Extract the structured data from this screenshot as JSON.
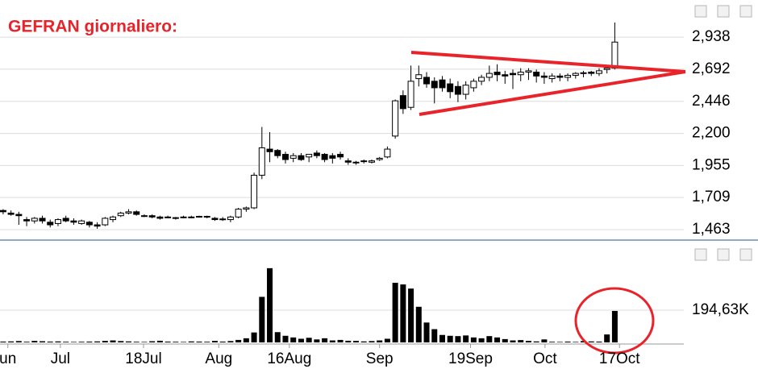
{
  "chart_data": {
    "type": "candlestick",
    "title": "GEFRAN giornaliero:",
    "xlim": [
      -0.4,
      86.8
    ],
    "xticks": [
      {
        "value": 0.6,
        "label": "un"
      },
      {
        "value": 7.3,
        "label": "Jul"
      },
      {
        "value": 17.9,
        "label": "18Jul"
      },
      {
        "value": 27.5,
        "label": "Aug"
      },
      {
        "value": 36.5,
        "label": "16Aug"
      },
      {
        "value": 48,
        "label": "Sep"
      },
      {
        "value": 59.6,
        "label": "19Sep"
      },
      {
        "value": 69.1,
        "label": "Oct"
      },
      {
        "value": 78.6,
        "label": "17Oct"
      }
    ],
    "ylim": [
      1.383,
      3.21
    ],
    "yticks": [
      {
        "value": 1.463,
        "label": "1,463"
      },
      {
        "value": 1.709,
        "label": "1,709"
      },
      {
        "value": 1.955,
        "label": "1,955"
      },
      {
        "value": 2.2,
        "label": "2,200"
      },
      {
        "value": 2.446,
        "label": "2,446"
      },
      {
        "value": 2.692,
        "label": "2,692"
      },
      {
        "value": 2.938,
        "label": "2,938"
      }
    ],
    "grid": true,
    "up_color": "#ffffff",
    "down_color": "#000000",
    "candles": [
      [
        1.61,
        1.62,
        1.58,
        1.6
      ],
      [
        1.59,
        1.61,
        1.57,
        1.58
      ],
      [
        1.58,
        1.6,
        1.5,
        1.57
      ],
      [
        1.54,
        1.56,
        1.49,
        1.53
      ],
      [
        1.53,
        1.56,
        1.51,
        1.55
      ],
      [
        1.55,
        1.57,
        1.51,
        1.53
      ],
      [
        1.52,
        1.54,
        1.48,
        1.5
      ],
      [
        1.51,
        1.55,
        1.49,
        1.54
      ],
      [
        1.55,
        1.57,
        1.52,
        1.53
      ],
      [
        1.53,
        1.55,
        1.5,
        1.52
      ],
      [
        1.51,
        1.54,
        1.5,
        1.53
      ],
      [
        1.52,
        1.53,
        1.48,
        1.5
      ],
      [
        1.5,
        1.52,
        1.47,
        1.49
      ],
      [
        1.5,
        1.56,
        1.49,
        1.55
      ],
      [
        1.54,
        1.57,
        1.52,
        1.56
      ],
      [
        1.57,
        1.6,
        1.56,
        1.59
      ],
      [
        1.59,
        1.62,
        1.58,
        1.6
      ],
      [
        1.6,
        1.61,
        1.57,
        1.58
      ],
      [
        1.57,
        1.58,
        1.56,
        1.57
      ],
      [
        1.57,
        1.58,
        1.55,
        1.56
      ],
      [
        1.56,
        1.57,
        1.54,
        1.55
      ],
      [
        1.56,
        1.57,
        1.55,
        1.56
      ],
      [
        1.55,
        1.56,
        1.54,
        1.555
      ],
      [
        1.56,
        1.57,
        1.55,
        1.56
      ],
      [
        1.56,
        1.57,
        1.55,
        1.56
      ],
      [
        1.56,
        1.57,
        1.555,
        1.565
      ],
      [
        1.56,
        1.57,
        1.55,
        1.565
      ],
      [
        1.55,
        1.56,
        1.53,
        1.54
      ],
      [
        1.54,
        1.56,
        1.53,
        1.545
      ],
      [
        1.54,
        1.57,
        1.52,
        1.56
      ],
      [
        1.56,
        1.63,
        1.55,
        1.62
      ],
      [
        1.62,
        1.64,
        1.6,
        1.63
      ],
      [
        1.63,
        1.9,
        1.62,
        1.88
      ],
      [
        1.88,
        2.25,
        1.85,
        2.09
      ],
      [
        2.08,
        2.21,
        1.98,
        2.06
      ],
      [
        2.07,
        2.08,
        2.01,
        2.03
      ],
      [
        2.04,
        2.06,
        1.97,
        2.0
      ],
      [
        2.01,
        2.05,
        1.98,
        2.03
      ],
      [
        2.03,
        2.05,
        1.99,
        2.0
      ],
      [
        2.02,
        2.04,
        1.98,
        2.04
      ],
      [
        2.05,
        2.07,
        2.01,
        2.03
      ],
      [
        2.04,
        2.05,
        1.98,
        2.0
      ],
      [
        2.03,
        2.05,
        1.97,
        2.01
      ],
      [
        2.04,
        2.06,
        2.0,
        2.02
      ],
      [
        1.99,
        2.01,
        1.96,
        1.98
      ],
      [
        1.98,
        1.99,
        1.96,
        1.975
      ],
      [
        1.99,
        2.0,
        1.97,
        1.985
      ],
      [
        1.98,
        2.0,
        1.97,
        1.99
      ],
      [
        2.0,
        2.02,
        1.99,
        2.01
      ],
      [
        2.02,
        2.1,
        2.01,
        2.08
      ],
      [
        2.18,
        2.46,
        2.16,
        2.45
      ],
      [
        2.49,
        2.53,
        2.35,
        2.39
      ],
      [
        2.4,
        2.72,
        2.38,
        2.6
      ],
      [
        2.62,
        2.72,
        2.56,
        2.65
      ],
      [
        2.63,
        2.67,
        2.55,
        2.58
      ],
      [
        2.6,
        2.63,
        2.43,
        2.55
      ],
      [
        2.61,
        2.64,
        2.52,
        2.55
      ],
      [
        2.58,
        2.62,
        2.47,
        2.52
      ],
      [
        2.56,
        2.6,
        2.44,
        2.5
      ],
      [
        2.5,
        2.6,
        2.46,
        2.57
      ],
      [
        2.55,
        2.62,
        2.52,
        2.6
      ],
      [
        2.6,
        2.65,
        2.57,
        2.63
      ],
      [
        2.63,
        2.72,
        2.6,
        2.66
      ],
      [
        2.67,
        2.73,
        2.6,
        2.65
      ],
      [
        2.65,
        2.68,
        2.58,
        2.64
      ],
      [
        2.66,
        2.69,
        2.54,
        2.65
      ],
      [
        2.65,
        2.7,
        2.6,
        2.67
      ],
      [
        2.67,
        2.7,
        2.61,
        2.68
      ],
      [
        2.67,
        2.69,
        2.59,
        2.64
      ],
      [
        2.64,
        2.67,
        2.58,
        2.63
      ],
      [
        2.62,
        2.66,
        2.59,
        2.64
      ],
      [
        2.64,
        2.66,
        2.6,
        2.63
      ],
      [
        2.63,
        2.66,
        2.6,
        2.645
      ],
      [
        2.645,
        2.67,
        2.62,
        2.66
      ],
      [
        2.66,
        2.68,
        2.63,
        2.665
      ],
      [
        2.67,
        2.68,
        2.64,
        2.66
      ],
      [
        2.66,
        2.7,
        2.64,
        2.68
      ],
      [
        2.69,
        2.72,
        2.66,
        2.7
      ],
      [
        2.7,
        3.05,
        2.69,
        2.9
      ]
    ],
    "volume": {
      "color": "#000000",
      "ylim": [
        0,
        462000
      ],
      "yticks": [
        {
          "value": 194630,
          "label": "194,63K"
        }
      ],
      "values": [
        5000,
        6000,
        8000,
        4000,
        9000,
        7000,
        5000,
        6000,
        4000,
        3000,
        4000,
        5000,
        6000,
        9000,
        12000,
        8000,
        6000,
        4000,
        3000,
        7000,
        10000,
        5000,
        4000,
        3000,
        6000,
        5000,
        4000,
        9000,
        5000,
        8000,
        15000,
        25000,
        60000,
        275000,
        448000,
        62000,
        40000,
        30000,
        22000,
        28000,
        18000,
        25000,
        12000,
        15000,
        10000,
        9000,
        6000,
        8000,
        12000,
        22000,
        360000,
        350000,
        325000,
        215000,
        120000,
        80000,
        45000,
        40000,
        38000,
        42000,
        30000,
        25000,
        38000,
        30000,
        20000,
        12000,
        14000,
        9000,
        6000,
        18000,
        4000,
        3000,
        5000,
        3000,
        8000,
        6000,
        5000,
        48000,
        190000
      ]
    }
  }
}
